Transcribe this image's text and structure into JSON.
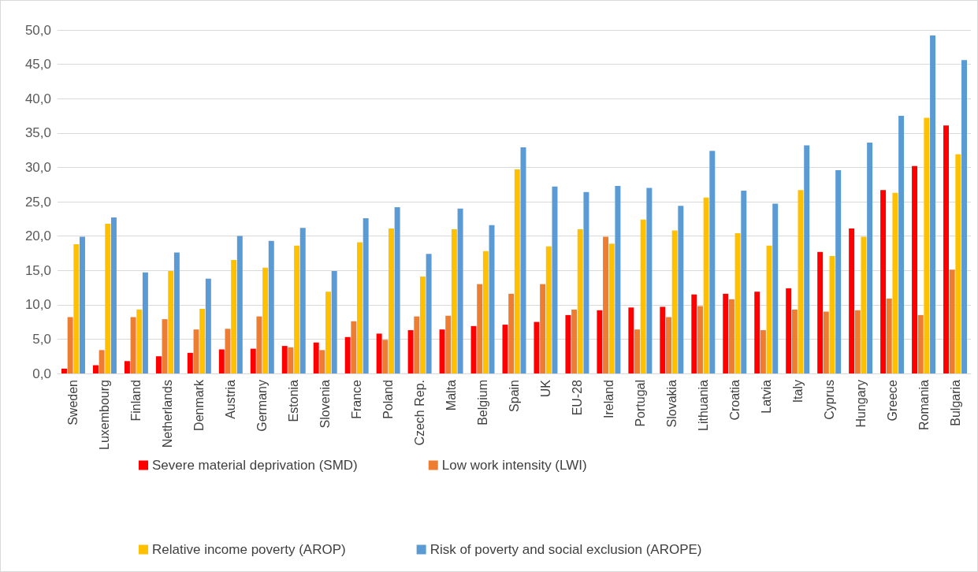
{
  "chart_data": {
    "type": "bar",
    "categories": [
      "Sweden",
      "Luxembourg",
      "Finland",
      "Netherlands",
      "Denmark",
      "Austria",
      "Germany",
      "Estonia",
      "Slovenia",
      "France",
      "Poland",
      "Czech Rep.",
      "Malta",
      "Belgium",
      "Spain",
      "UK",
      "EU-28",
      "Ireland",
      "Portugal",
      "Slovakia",
      "Lithuania",
      "Croatia",
      "Latvia",
      "Italy",
      "Cyprus",
      "Hungary",
      "Greece",
      "Romania",
      "Bulgaria"
    ],
    "series": [
      {
        "name": "Severe material deprivation (SMD)",
        "color": "#ff0000",
        "values": [
          0.7,
          1.2,
          1.8,
          2.5,
          3.0,
          3.5,
          3.6,
          4.0,
          4.5,
          5.3,
          5.8,
          6.3,
          6.4,
          6.9,
          7.1,
          7.5,
          8.5,
          9.2,
          9.6,
          9.7,
          11.5,
          11.6,
          11.9,
          12.4,
          17.7,
          21.1,
          26.7,
          30.2,
          36.1
        ]
      },
      {
        "name": "Low work intensity (LWI)",
        "color": "#ed7d31",
        "values": [
          8.2,
          3.4,
          8.2,
          7.9,
          6.4,
          6.5,
          8.3,
          3.8,
          3.4,
          7.6,
          4.9,
          8.3,
          8.4,
          13.0,
          11.6,
          13.0,
          9.3,
          19.9,
          6.4,
          8.2,
          9.8,
          10.8,
          6.3,
          9.3,
          9.0,
          9.2,
          10.9,
          8.5,
          15.1
        ]
      },
      {
        "name": "Relative income poverty (AROP)",
        "color": "#ffc000",
        "values": [
          18.8,
          21.8,
          9.3,
          14.9,
          9.4,
          16.5,
          15.4,
          18.6,
          11.9,
          19.1,
          21.1,
          14.1,
          21.0,
          17.8,
          29.7,
          18.5,
          21.0,
          18.9,
          22.4,
          20.8,
          25.6,
          20.4,
          18.6,
          26.7,
          17.1,
          19.9,
          26.3,
          37.2,
          31.9
        ]
      },
      {
        "name": "Risk of poverty and social exclusion (AROPE)",
        "color": "#5b9bd5",
        "values": [
          19.9,
          22.7,
          14.7,
          17.6,
          13.8,
          20.0,
          19.3,
          21.2,
          14.9,
          22.6,
          24.2,
          17.4,
          24.0,
          21.6,
          32.9,
          27.2,
          26.4,
          27.3,
          27.0,
          24.4,
          32.4,
          26.6,
          24.7,
          33.2,
          29.6,
          33.6,
          37.5,
          49.2,
          45.6
        ]
      }
    ],
    "ylim": [
      0,
      50
    ],
    "yticks": [
      {
        "value": 0,
        "label": "0,0"
      },
      {
        "value": 5,
        "label": "5,0"
      },
      {
        "value": 10,
        "label": "10,0"
      },
      {
        "value": 15,
        "label": "15,0"
      },
      {
        "value": 20,
        "label": "20,0"
      },
      {
        "value": 25,
        "label": "25,0"
      },
      {
        "value": 30,
        "label": "30,0"
      },
      {
        "value": 35,
        "label": "35,0"
      },
      {
        "value": 40,
        "label": "40,0"
      },
      {
        "value": 45,
        "label": "45,0"
      },
      {
        "value": 50,
        "label": "50,0"
      }
    ],
    "grid": "y",
    "legend": "bottom"
  }
}
